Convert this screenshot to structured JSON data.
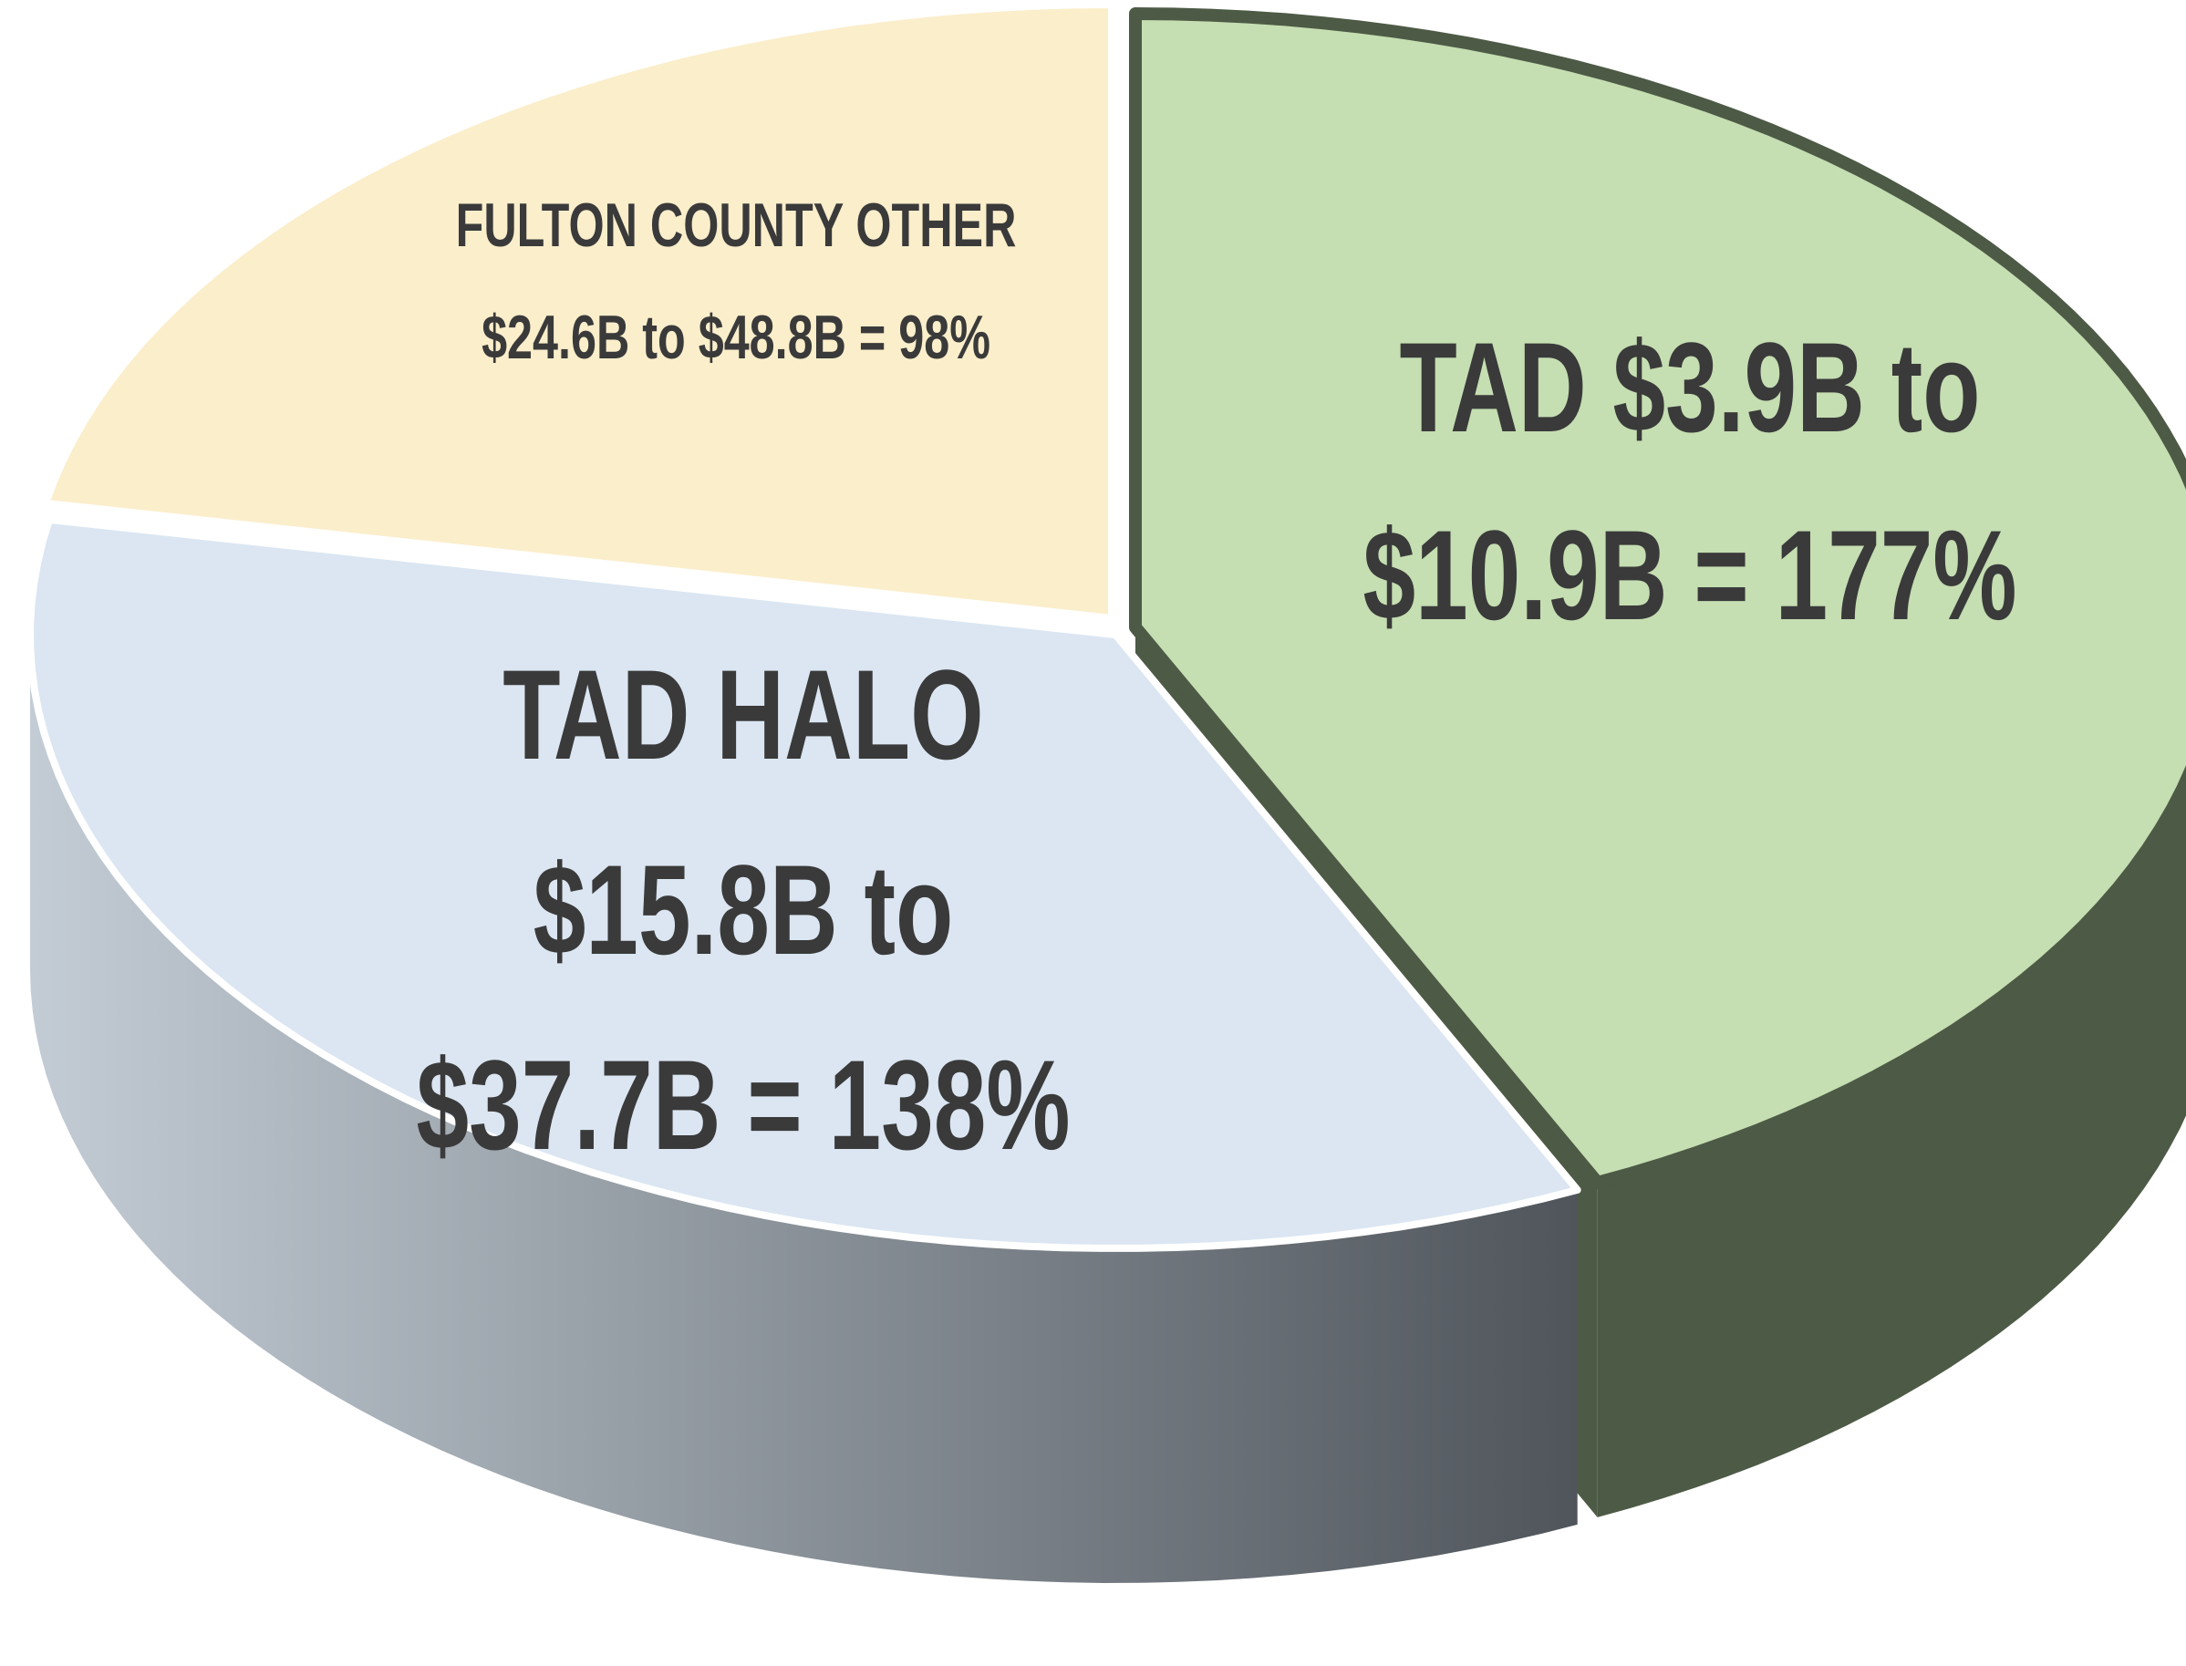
{
  "chart_data": {
    "type": "pie",
    "style": "3d",
    "categories": [
      [
        "TAD $3.9B to",
        "$10.9B = 177%"
      ],
      [
        "TAD HALO",
        "$15.8B to",
        "$37.7B = 138%"
      ],
      [
        "FULTON COUNTY OTHER",
        "$24.6B to $48.8B = 98%"
      ]
    ],
    "values": [
      43,
      35,
      22
    ],
    "colors": [
      "#c5deb2",
      "#dbe6f2",
      "#fbeecb"
    ],
    "side_colors": [
      "#4d5a45",
      "#8c96a0",
      "#c8b98f"
    ]
  }
}
